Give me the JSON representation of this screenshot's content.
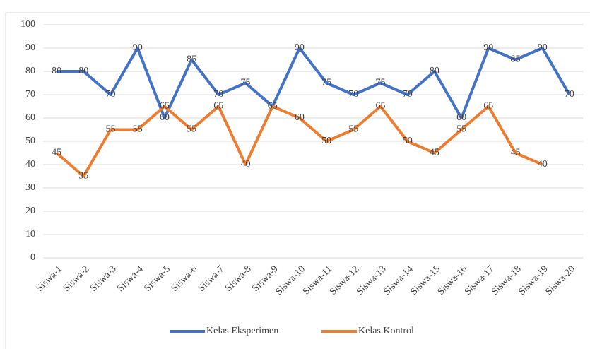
{
  "chart_data": {
    "type": "line",
    "categories": [
      "Siswa-1",
      "Siswa-2",
      "Siswa-3",
      "Siswa-4",
      "Siswa-5",
      "Siswa-6",
      "Siswa-7",
      "Siswa-8",
      "Siswa-9",
      "Siswa-10",
      "Siswa-11",
      "Siswa-12",
      "Siswa-13",
      "Siswa-14",
      "Siswa-15",
      "Siswa-16",
      "Siswa-17",
      "Siswa-18",
      "Siswa-19",
      "Siswa-20"
    ],
    "series": [
      {
        "name": "Kelas Eksperimen",
        "color": "#4472c4",
        "values": [
          80,
          80,
          70,
          90,
          60,
          85,
          70,
          75,
          65,
          90,
          75,
          70,
          75,
          70,
          80,
          60,
          90,
          85,
          90,
          70
        ]
      },
      {
        "name": "Kelas Kontrol",
        "color": "#ed7d31",
        "values": [
          45,
          35,
          55,
          55,
          65,
          55,
          65,
          40,
          65,
          60,
          50,
          55,
          65,
          50,
          45,
          55,
          65,
          45,
          40,
          null
        ]
      }
    ],
    "ylim": [
      0,
      100
    ],
    "yticks": [
      0,
      10,
      20,
      30,
      40,
      50,
      60,
      70,
      80,
      90,
      100
    ],
    "grid": true,
    "legend": "bottom"
  }
}
